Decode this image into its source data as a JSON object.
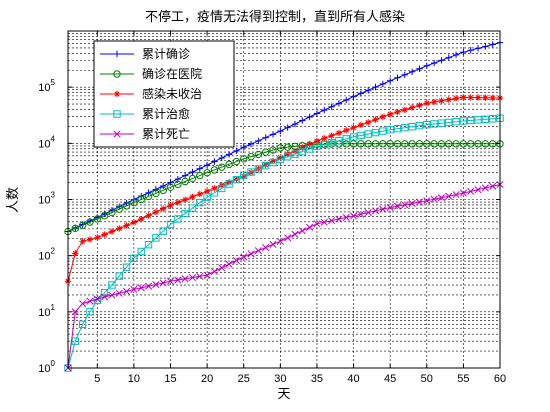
{
  "chart_data": {
    "type": "line",
    "title": "不停工，疫情无法得到控制，直到所有人感染",
    "xlabel": "天",
    "ylabel": "人数",
    "xlim": [
      1,
      60
    ],
    "ylim": [
      1,
      1000000
    ],
    "yscale": "log",
    "grid": true,
    "legend_position": "top-left",
    "x_ticks": [
      "5",
      "10",
      "15",
      "20",
      "25",
      "30",
      "35",
      "40",
      "45",
      "50",
      "55",
      "60"
    ],
    "x_tick_values": [
      5,
      10,
      15,
      20,
      25,
      30,
      35,
      40,
      45,
      50,
      55,
      60
    ],
    "y_tick_values": [
      1,
      10,
      100,
      1000,
      10000,
      100000
    ],
    "y_ticks": [
      {
        "base": "10",
        "exp": "0"
      },
      {
        "base": "10",
        "exp": "1"
      },
      {
        "base": "10",
        "exp": "2"
      },
      {
        "base": "10",
        "exp": "3"
      },
      {
        "base": "10",
        "exp": "4"
      },
      {
        "base": "10",
        "exp": "5"
      }
    ],
    "series": [
      {
        "name": "累计确诊",
        "color": "#0000ff",
        "marker": "plus",
        "x": [
          1,
          5,
          10,
          15,
          20,
          25,
          30,
          35,
          40,
          45,
          50,
          55,
          60
        ],
        "y": [
          270,
          480,
          1000,
          2000,
          4100,
          8500,
          16500,
          34000,
          68000,
          130000,
          240000,
          420000,
          620000
        ]
      },
      {
        "name": "确诊在医院",
        "color": "#008000",
        "marker": "circle",
        "x": [
          1,
          5,
          10,
          15,
          20,
          25,
          30,
          35,
          40,
          45,
          50,
          55,
          60
        ],
        "y": [
          270,
          450,
          880,
          1650,
          3000,
          5300,
          8300,
          9600,
          9800,
          9800,
          9800,
          9800,
          9800
        ]
      },
      {
        "name": "感染未收治",
        "color": "#ff0000",
        "marker": "star",
        "x": [
          1,
          2,
          3,
          5,
          10,
          15,
          20,
          25,
          30,
          35,
          40,
          45,
          50,
          55,
          60
        ],
        "y": [
          35,
          110,
          180,
          210,
          390,
          790,
          1400,
          2600,
          5600,
          11000,
          19000,
          33000,
          52000,
          66000,
          64000
        ]
      },
      {
        "name": "累计治愈",
        "color": "#00bfbf",
        "marker": "square",
        "x": [
          1,
          2,
          3,
          4,
          5,
          7,
          10,
          15,
          20,
          25,
          30,
          35,
          40,
          45,
          50,
          55,
          60
        ],
        "y": [
          1,
          3,
          6,
          10,
          16,
          30,
          90,
          360,
          1100,
          2700,
          5200,
          8800,
          13000,
          17500,
          21500,
          25000,
          28000
        ]
      },
      {
        "name": "累计死亡",
        "color": "#bf00bf",
        "marker": "x",
        "x": [
          1,
          2,
          3,
          5,
          10,
          15,
          20,
          25,
          30,
          35,
          40,
          45,
          50,
          55,
          60
        ],
        "y": [
          1,
          10,
          14,
          17,
          25,
          35,
          45,
          95,
          180,
          370,
          510,
          720,
          950,
          1300,
          1850
        ]
      }
    ]
  }
}
